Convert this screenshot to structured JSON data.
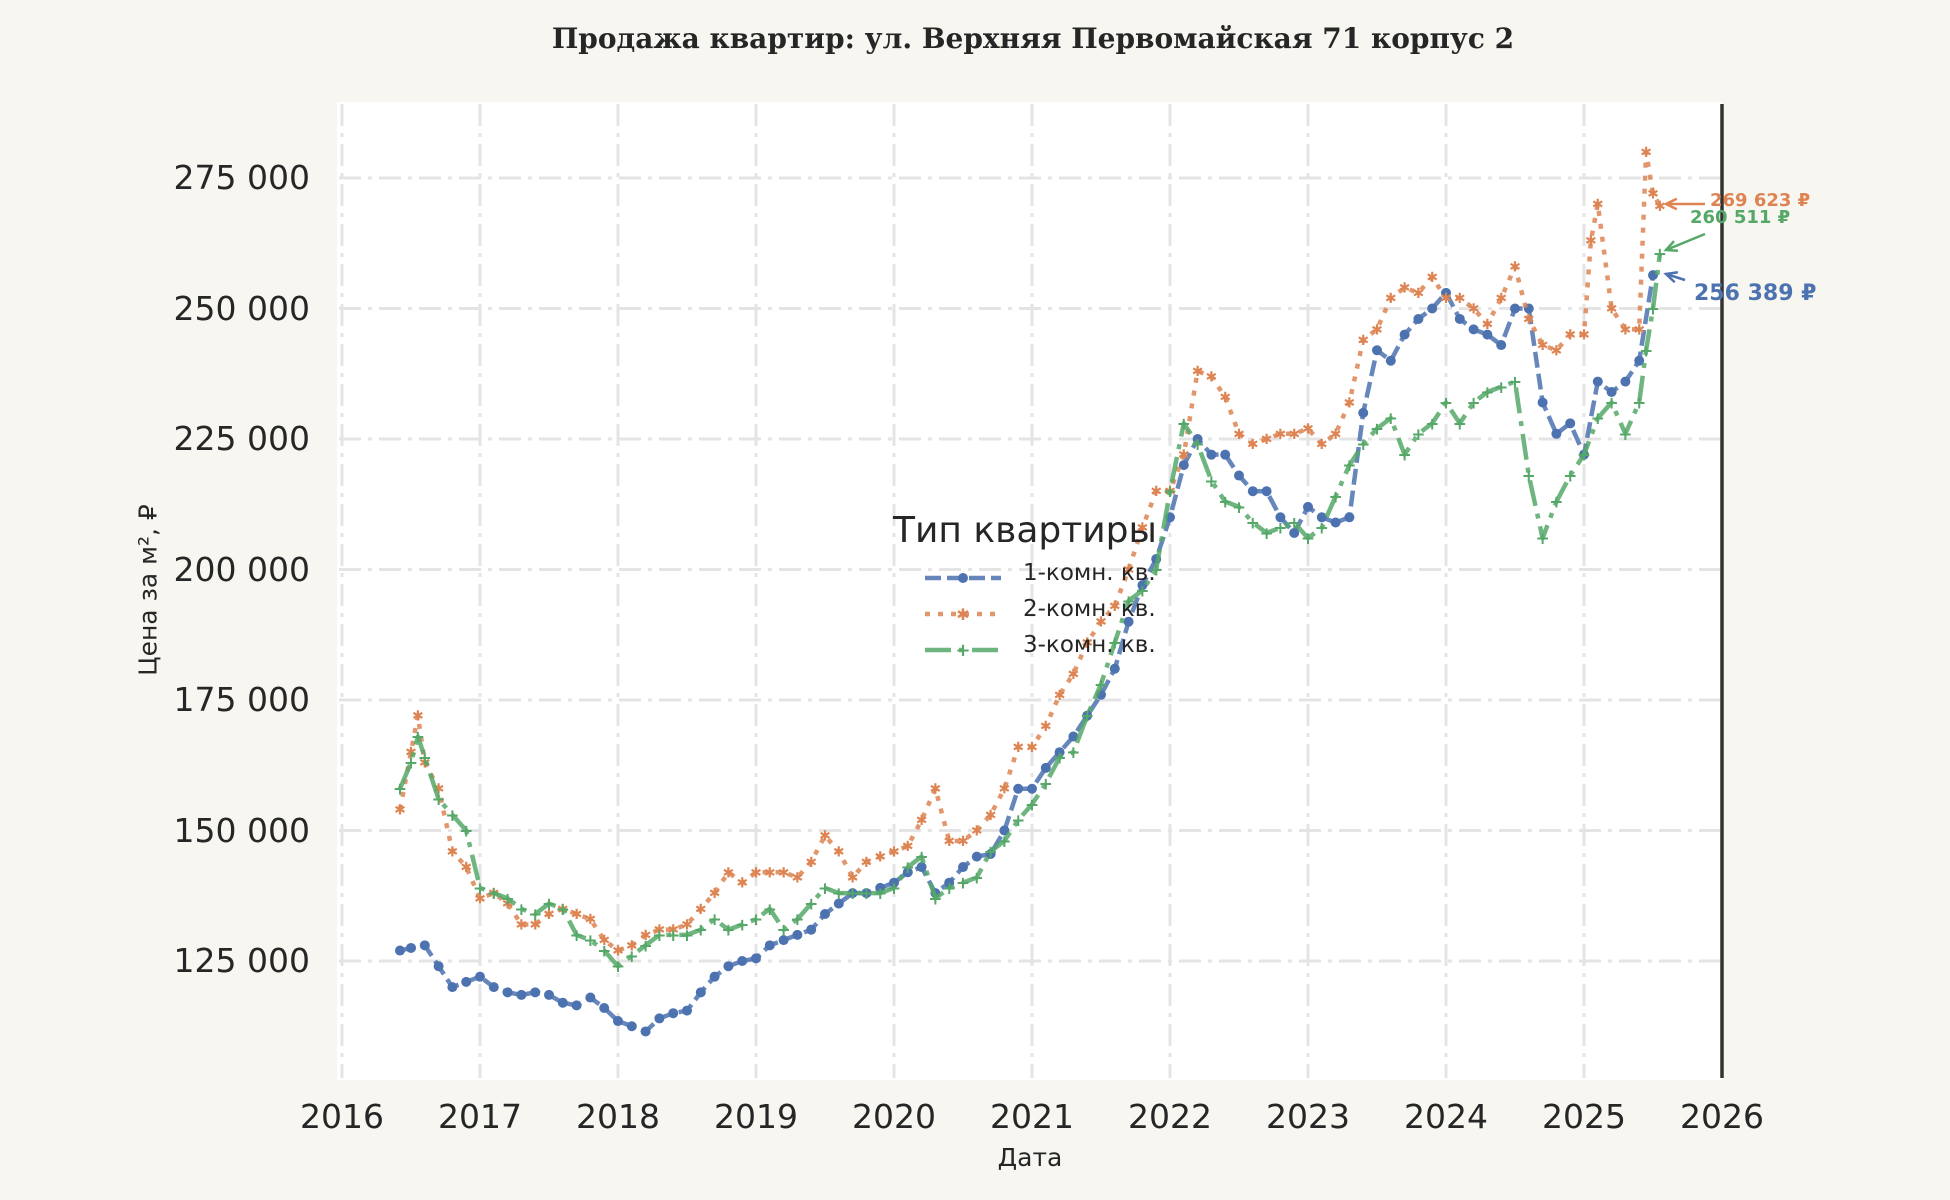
{
  "title": "Продажа квартир: ул. Верхняя Первомайская 71 корпус 2",
  "axes": {
    "xlabel": "Дата",
    "ylabel": "Цена за м², ₽",
    "xticks": [
      "2016",
      "2017",
      "2018",
      "2019",
      "2020",
      "2021",
      "2022",
      "2023",
      "2024",
      "2025",
      "2026"
    ],
    "yticks": [
      "125 000",
      "150 000",
      "175 000",
      "200 000",
      "225 000",
      "250 000",
      "275 000"
    ]
  },
  "legend": {
    "title": "Тип квартиры",
    "items": [
      {
        "label": "1-комн. кв.",
        "color": "#4c72b0"
      },
      {
        "label": "2-комн. кв.",
        "color": "#dd8452"
      },
      {
        "label": "3-комн. кв.",
        "color": "#55a868"
      }
    ]
  },
  "annotations": [
    {
      "text": "269 623 ₽",
      "color": "#dd8452"
    },
    {
      "text": "260 511 ₽",
      "color": "#55a868"
    },
    {
      "text": "256 389 ₽",
      "color": "#4c72b0"
    }
  ],
  "chart_data": {
    "type": "line",
    "title": "Продажа квартир: ул. Верхняя Первомайская 71 корпус 2",
    "xlabel": "Дата",
    "ylabel": "Цена за м², ₽",
    "xlim": [
      2016,
      2026
    ],
    "ylim": [
      103000,
      289000
    ],
    "grid": true,
    "legend_position": "center",
    "legend_title": "Тип квартиры",
    "series": [
      {
        "name": "1-комн. кв.",
        "color": "#4c72b0",
        "style": "dashed, circle markers",
        "x": [
          2016.42,
          2016.5,
          2016.6,
          2016.7,
          2016.8,
          2016.9,
          2017.0,
          2017.1,
          2017.2,
          2017.3,
          2017.4,
          2017.5,
          2017.6,
          2017.7,
          2017.8,
          2017.9,
          2018.0,
          2018.1,
          2018.2,
          2018.3,
          2018.4,
          2018.5,
          2018.6,
          2018.7,
          2018.8,
          2018.9,
          2019.0,
          2019.1,
          2019.2,
          2019.3,
          2019.4,
          2019.5,
          2019.6,
          2019.7,
          2019.8,
          2019.9,
          2020.0,
          2020.1,
          2020.2,
          2020.3,
          2020.4,
          2020.5,
          2020.6,
          2020.7,
          2020.8,
          2020.9,
          2021.0,
          2021.1,
          2021.2,
          2021.3,
          2021.4,
          2021.5,
          2021.6,
          2021.7,
          2021.8,
          2021.9,
          2022.0,
          2022.1,
          2022.2,
          2022.3,
          2022.4,
          2022.5,
          2022.6,
          2022.7,
          2022.8,
          2022.9,
          2023.0,
          2023.1,
          2023.2,
          2023.3,
          2023.4,
          2023.5,
          2023.6,
          2023.7,
          2023.8,
          2023.9,
          2024.0,
          2024.1,
          2024.2,
          2024.3,
          2024.4,
          2024.5,
          2024.6,
          2024.7,
          2024.8,
          2024.9,
          2025.0,
          2025.1,
          2025.2,
          2025.3,
          2025.4,
          2025.5
        ],
        "values": [
          127000,
          127500,
          128000,
          124000,
          120000,
          121000,
          122000,
          120000,
          119000,
          118500,
          119000,
          118500,
          117000,
          116500,
          118000,
          116000,
          113500,
          112500,
          111500,
          114000,
          115000,
          115500,
          119000,
          122000,
          124000,
          125000,
          125500,
          128000,
          129000,
          130000,
          131000,
          134000,
          136000,
          138000,
          138000,
          139000,
          140000,
          142000,
          143000,
          138000,
          140000,
          143000,
          145000,
          145500,
          150000,
          158000,
          158000,
          162000,
          165000,
          168000,
          172000,
          176000,
          181000,
          190000,
          197000,
          202000,
          210000,
          220000,
          225000,
          222000,
          222000,
          218000,
          215000,
          215000,
          210000,
          207000,
          212000,
          210000,
          209000,
          210000,
          230000,
          242000,
          240000,
          245000,
          248000,
          250000,
          253000,
          248000,
          246000,
          245000,
          243000,
          250000,
          250000,
          232000,
          226000,
          228000,
          222000,
          236000,
          234000,
          236000,
          240000,
          256389
        ]
      },
      {
        "name": "2-комн. кв.",
        "color": "#dd8452",
        "style": "dotted, star markers",
        "x": [
          2016.42,
          2016.5,
          2016.55,
          2016.6,
          2016.7,
          2016.8,
          2016.9,
          2017.0,
          2017.1,
          2017.2,
          2017.3,
          2017.4,
          2017.5,
          2017.6,
          2017.7,
          2017.8,
          2017.9,
          2018.0,
          2018.1,
          2018.2,
          2018.3,
          2018.4,
          2018.5,
          2018.6,
          2018.7,
          2018.8,
          2018.9,
          2019.0,
          2019.1,
          2019.2,
          2019.3,
          2019.4,
          2019.5,
          2019.6,
          2019.7,
          2019.8,
          2019.9,
          2020.0,
          2020.1,
          2020.2,
          2020.3,
          2020.4,
          2020.5,
          2020.6,
          2020.7,
          2020.8,
          2020.9,
          2021.0,
          2021.1,
          2021.2,
          2021.3,
          2021.4,
          2021.5,
          2021.6,
          2021.7,
          2021.8,
          2021.9,
          2022.0,
          2022.1,
          2022.2,
          2022.3,
          2022.4,
          2022.5,
          2022.6,
          2022.7,
          2022.8,
          2022.9,
          2023.0,
          2023.1,
          2023.2,
          2023.3,
          2023.4,
          2023.5,
          2023.6,
          2023.7,
          2023.8,
          2023.9,
          2024.0,
          2024.1,
          2024.2,
          2024.3,
          2024.4,
          2024.5,
          2024.6,
          2024.7,
          2024.8,
          2024.9,
          2025.0,
          2025.05,
          2025.1,
          2025.2,
          2025.3,
          2025.4,
          2025.45,
          2025.5,
          2025.55
        ],
        "values": [
          154000,
          165000,
          172000,
          163000,
          158000,
          146000,
          143000,
          137000,
          138000,
          136000,
          132000,
          132000,
          134000,
          135000,
          134000,
          133000,
          129000,
          127000,
          128000,
          130000,
          131000,
          131000,
          132000,
          135000,
          138000,
          142000,
          140000,
          142000,
          142000,
          142000,
          141000,
          144000,
          149000,
          146000,
          141000,
          144000,
          145000,
          146000,
          147000,
          152000,
          158000,
          148000,
          148000,
          150000,
          153000,
          158000,
          166000,
          166000,
          170000,
          176000,
          180000,
          186000,
          190000,
          193000,
          200000,
          208000,
          215000,
          215000,
          222000,
          238000,
          237000,
          233000,
          226000,
          224000,
          225000,
          226000,
          226000,
          227000,
          224000,
          226000,
          232000,
          244000,
          246000,
          252000,
          254000,
          253000,
          256000,
          252000,
          252000,
          250000,
          247000,
          252000,
          258000,
          248000,
          243000,
          242000,
          245000,
          245000,
          263000,
          270000,
          250000,
          246000,
          246000,
          280000,
          272000,
          269623
        ]
      },
      {
        "name": "3-комн. кв.",
        "color": "#55a868",
        "style": "dash-dot, plus markers",
        "x": [
          2016.42,
          2016.5,
          2016.55,
          2016.6,
          2016.7,
          2016.8,
          2016.9,
          2017.0,
          2017.1,
          2017.2,
          2017.3,
          2017.4,
          2017.5,
          2017.6,
          2017.7,
          2017.8,
          2017.9,
          2018.0,
          2018.1,
          2018.2,
          2018.3,
          2018.4,
          2018.5,
          2018.6,
          2018.7,
          2018.8,
          2018.9,
          2019.0,
          2019.1,
          2019.2,
          2019.3,
          2019.4,
          2019.5,
          2019.6,
          2019.7,
          2019.8,
          2019.9,
          2020.0,
          2020.1,
          2020.2,
          2020.3,
          2020.4,
          2020.5,
          2020.6,
          2020.7,
          2020.8,
          2020.9,
          2021.0,
          2021.1,
          2021.2,
          2021.3,
          2021.4,
          2021.5,
          2021.6,
          2021.7,
          2021.8,
          2021.9,
          2022.0,
          2022.1,
          2022.2,
          2022.3,
          2022.4,
          2022.5,
          2022.6,
          2022.7,
          2022.8,
          2022.9,
          2023.0,
          2023.1,
          2023.2,
          2023.3,
          2023.4,
          2023.5,
          2023.6,
          2023.7,
          2023.8,
          2023.9,
          2024.0,
          2024.1,
          2024.2,
          2024.3,
          2024.4,
          2024.5,
          2024.6,
          2024.7,
          2024.8,
          2024.9,
          2025.0,
          2025.1,
          2025.2,
          2025.3,
          2025.4,
          2025.45,
          2025.5,
          2025.55
        ],
        "values": [
          158000,
          163000,
          168000,
          164000,
          156000,
          153000,
          150000,
          139000,
          138000,
          137000,
          135000,
          134000,
          136000,
          135000,
          130000,
          129000,
          127000,
          124000,
          126000,
          128000,
          130000,
          130000,
          130000,
          131000,
          133000,
          131000,
          132000,
          133000,
          135000,
          131000,
          133000,
          136000,
          139000,
          138000,
          138000,
          138000,
          138000,
          139000,
          143000,
          145000,
          137000,
          139000,
          140000,
          141000,
          146000,
          148000,
          152000,
          155000,
          159000,
          164000,
          165000,
          172000,
          178000,
          186000,
          194000,
          196000,
          200000,
          215000,
          228000,
          224000,
          217000,
          213000,
          212000,
          209000,
          207000,
          208000,
          209000,
          206000,
          208000,
          214000,
          220000,
          224000,
          227000,
          229000,
          222000,
          226000,
          228000,
          232000,
          228000,
          232000,
          234000,
          235000,
          236000,
          218000,
          206000,
          213000,
          218000,
          222000,
          229000,
          232000,
          226000,
          232000,
          242000,
          250000,
          260511
        ]
      }
    ]
  }
}
